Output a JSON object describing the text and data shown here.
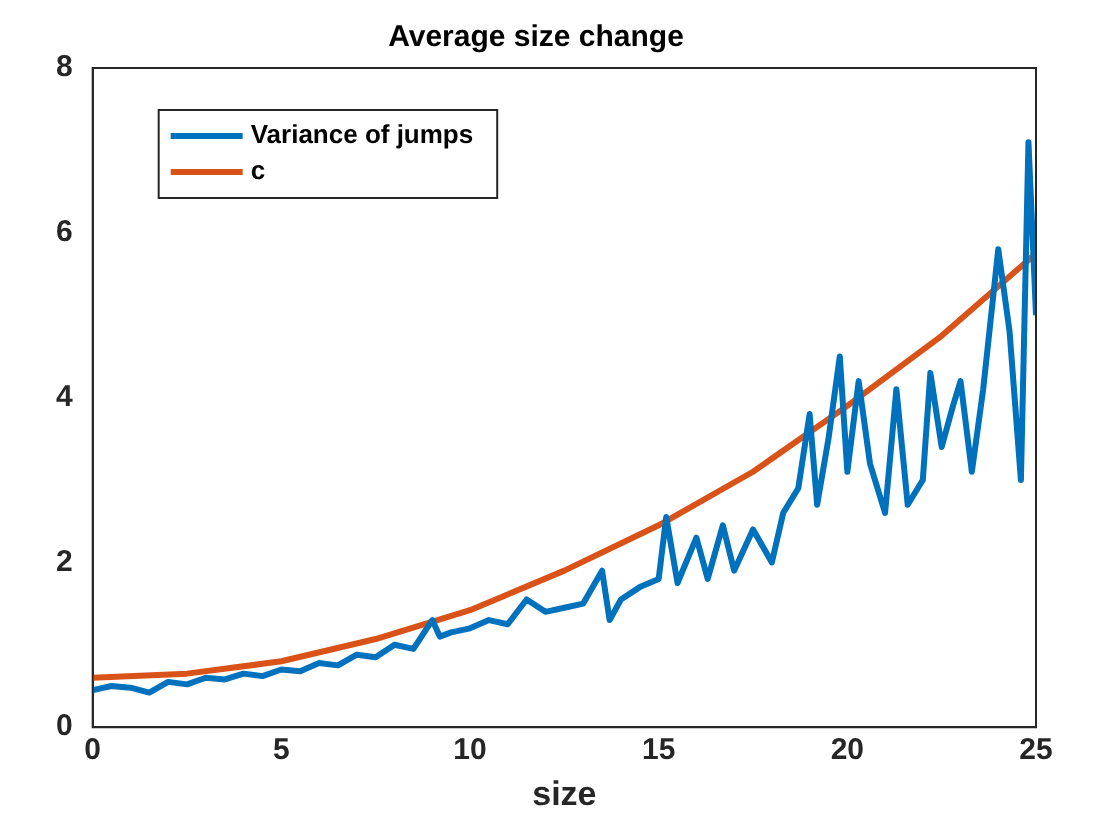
{
  "chart_data": {
    "type": "line",
    "title": "Average size change",
    "xlabel": "size",
    "xlim": [
      0,
      25
    ],
    "xticks": [
      0,
      5,
      10,
      15,
      20,
      25
    ],
    "ylim": [
      0,
      8
    ],
    "yticks": [
      0,
      2,
      4,
      6,
      8
    ],
    "grid": false,
    "legend": "top left",
    "line_style": "solid",
    "marker": "none",
    "series": [
      {
        "name": "Variance of jumps",
        "color": "#0072bd",
        "x": [
          0,
          0.5,
          1,
          1.5,
          2,
          2.5,
          3,
          3.5,
          4,
          4.5,
          5,
          5.5,
          6,
          6.5,
          7,
          7.5,
          8,
          8.5,
          9,
          9.2,
          9.5,
          10,
          10.5,
          11,
          11.5,
          12,
          12.5,
          13,
          13.5,
          13.7,
          14,
          14.5,
          15,
          15.2,
          15.5,
          16,
          16.3,
          16.7,
          17,
          17.5,
          18,
          18.3,
          18.7,
          19,
          19.2,
          19.5,
          19.8,
          20,
          20.3,
          20.6,
          21,
          21.3,
          21.6,
          22,
          22.2,
          22.5,
          22.8,
          23,
          23.3,
          23.6,
          24,
          24.3,
          24.6,
          24.8,
          25
        ],
        "values": [
          0.45,
          0.5,
          0.48,
          0.42,
          0.55,
          0.52,
          0.6,
          0.58,
          0.65,
          0.62,
          0.7,
          0.68,
          0.78,
          0.75,
          0.88,
          0.85,
          1.0,
          0.95,
          1.3,
          1.1,
          1.15,
          1.2,
          1.3,
          1.25,
          1.55,
          1.4,
          1.45,
          1.5,
          1.9,
          1.3,
          1.55,
          1.7,
          1.8,
          2.55,
          1.75,
          2.3,
          1.8,
          2.45,
          1.9,
          2.4,
          2.0,
          2.6,
          2.9,
          3.8,
          2.7,
          3.5,
          4.5,
          3.1,
          4.2,
          3.2,
          2.6,
          4.1,
          2.7,
          3.0,
          4.3,
          3.4,
          3.9,
          4.2,
          3.1,
          4.1,
          5.8,
          4.8,
          3.0,
          7.1,
          5.0
        ]
      },
      {
        "name": "c",
        "color": "#d95319",
        "x": [
          0,
          2.5,
          5,
          7.5,
          10,
          12.5,
          15,
          17.5,
          20,
          22.5,
          25
        ],
        "values": [
          0.6,
          0.65,
          0.8,
          1.07,
          1.42,
          1.9,
          2.45,
          3.1,
          3.9,
          4.75,
          5.75
        ]
      }
    ]
  }
}
